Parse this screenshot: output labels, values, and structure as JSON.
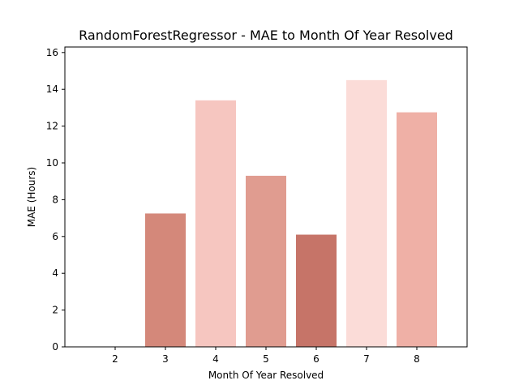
{
  "chart_data": {
    "type": "bar",
    "title": "RandomForestRegressor - MAE to Month Of Year Resolved",
    "xlabel": "Month Of Year Resolved",
    "ylabel": "MAE (Hours)",
    "categories": [
      "2",
      "3",
      "4",
      "5",
      "6",
      "7",
      "8"
    ],
    "values": [
      0,
      7.25,
      13.4,
      9.3,
      6.1,
      14.5,
      12.75
    ],
    "bar_colors": [
      "#ffffff",
      "#d4887a",
      "#f6c6c0",
      "#e09c90",
      "#c67468",
      "#fbdcd8",
      "#efb0a6"
    ],
    "ylim": [
      0,
      16.3
    ],
    "yticks": [
      "0",
      "2",
      "4",
      "6",
      "8",
      "10",
      "12",
      "14",
      "16"
    ],
    "grid": false,
    "legend": false
  }
}
